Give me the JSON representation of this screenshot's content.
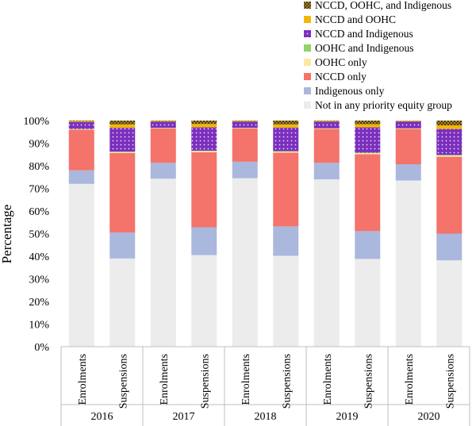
{
  "chart_data": {
    "type": "bar",
    "stacked": true,
    "title": "",
    "xlabel": "",
    "ylabel": "Percentage",
    "ylim": [
      0,
      100
    ],
    "yticks": [
      "0%",
      "10%",
      "20%",
      "30%",
      "40%",
      "50%",
      "60%",
      "70%",
      "80%",
      "90%",
      "100%"
    ],
    "legend_position": "top-right",
    "groups": [
      "2016",
      "2017",
      "2018",
      "2019",
      "2020"
    ],
    "categories": [
      "Enrolments",
      "Suspensions"
    ],
    "series": [
      {
        "name": "Not in any priority equity group",
        "color": "#ececec",
        "pattern": "none",
        "values": [
          [
            72.0,
            39.0
          ],
          [
            74.3,
            40.5
          ],
          [
            74.5,
            40.2
          ],
          [
            74.0,
            38.8
          ],
          [
            73.5,
            38.2
          ]
        ]
      },
      {
        "name": "Indigenous only",
        "color": "#aab8dd",
        "pattern": "none",
        "values": [
          [
            6.0,
            11.5
          ],
          [
            7.0,
            12.3
          ],
          [
            7.3,
            13.0
          ],
          [
            7.3,
            12.3
          ],
          [
            7.2,
            11.8
          ]
        ]
      },
      {
        "name": "NCCD only",
        "color": "#f4736a",
        "pattern": "none",
        "values": [
          [
            18.0,
            35.2
          ],
          [
            15.2,
            33.2
          ],
          [
            14.7,
            32.6
          ],
          [
            15.0,
            34.0
          ],
          [
            15.6,
            34.0
          ]
        ]
      },
      {
        "name": "OOHC only",
        "color": "#fbe8a0",
        "pattern": "none",
        "values": [
          [
            0.2,
            0.4
          ],
          [
            0.2,
            0.5
          ],
          [
            0.2,
            0.5
          ],
          [
            0.2,
            0.5
          ],
          [
            0.2,
            0.6
          ]
        ]
      },
      {
        "name": "OOHC and Indigenous",
        "color": "#8fd16a",
        "pattern": "none",
        "values": [
          [
            0.1,
            0.2
          ],
          [
            0.1,
            0.2
          ],
          [
            0.1,
            0.2
          ],
          [
            0.1,
            0.2
          ],
          [
            0.1,
            0.2
          ]
        ]
      },
      {
        "name": "NCCD and Indigenous",
        "color": "#7a2fbd",
        "pattern": "dots",
        "values": [
          [
            3.0,
            10.5
          ],
          [
            2.7,
            10.3
          ],
          [
            2.7,
            10.4
          ],
          [
            2.9,
            11.2
          ],
          [
            3.0,
            11.5
          ]
        ]
      },
      {
        "name": "NCCD and OOHC",
        "color": "#f2b705",
        "pattern": "none",
        "values": [
          [
            0.4,
            1.5
          ],
          [
            0.3,
            1.5
          ],
          [
            0.3,
            1.4
          ],
          [
            0.3,
            1.4
          ],
          [
            0.3,
            1.6
          ]
        ]
      },
      {
        "name": "NCCD, OOHC, and Indigenous",
        "color": "#8a6d1c",
        "pattern": "checker",
        "values": [
          [
            0.3,
            1.7
          ],
          [
            0.2,
            1.5
          ],
          [
            0.2,
            1.7
          ],
          [
            0.2,
            1.6
          ],
          [
            0.1,
            2.1
          ]
        ]
      }
    ]
  }
}
